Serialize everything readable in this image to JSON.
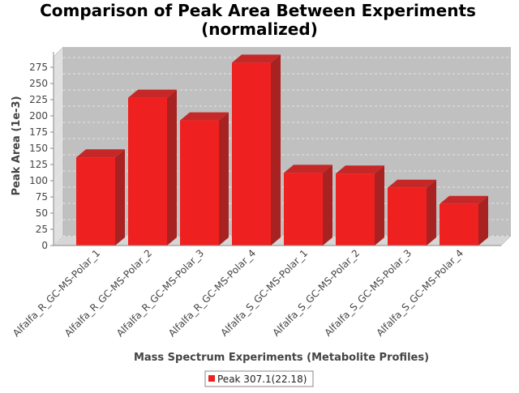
{
  "chart_data": {
    "type": "bar",
    "title": "Comparison of Peak Area Between Experiments",
    "subtitle": "(normalized)",
    "xlabel": "Mass Spectrum Experiments (Metabolite Profiles)",
    "ylabel": "Peak Area (1e-3)",
    "ylim": [
      0,
      290
    ],
    "yticks": [
      0,
      25,
      50,
      75,
      100,
      125,
      150,
      175,
      200,
      225,
      250,
      275
    ],
    "ytick_labels": [
      "0",
      "25",
      "50",
      "75",
      "100",
      "125",
      "150",
      "175",
      "200",
      "225",
      "250",
      "275"
    ],
    "categories": [
      "Alfalfa_R_GC-MS-Polar_1",
      "Alfalfa_R_GC-MS-Polar_2",
      "Alfalfa_R_GC-MS-Polar_3",
      "Alfalfa_R_GC-MS-Polar_4",
      "Alfalfa_S_GC-MS-Polar_1",
      "Alfalfa_S_GC-MS-Polar_2",
      "Alfalfa_S_GC-MS-Polar_3",
      "Alfalfa_S_GC-MS-Polar_4"
    ],
    "series": [
      {
        "name": "Peak 307.1(22.18)",
        "values": [
          136,
          228,
          193,
          282,
          112,
          111,
          89,
          64
        ],
        "color": "#ee2020"
      }
    ],
    "grid": true,
    "legend": "bottom-center",
    "plot_background": "#c0c0c0",
    "three_d": true
  }
}
